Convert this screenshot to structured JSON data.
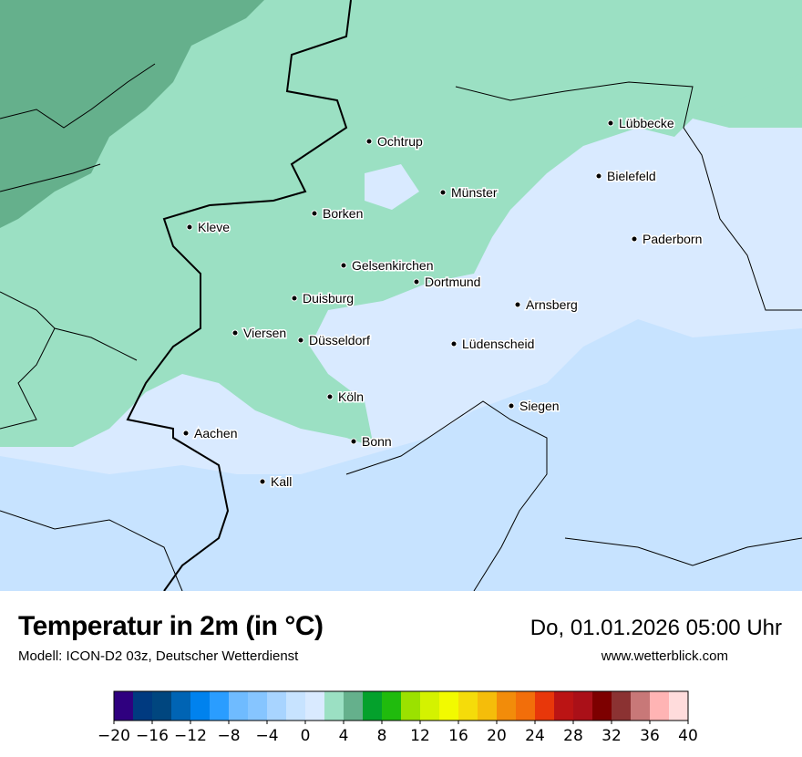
{
  "title": "Temperatur in 2m (in °C)",
  "subtitle": "Modell: ICON-D2 03z, Deutscher Wetterdienst",
  "datetime": "Do, 01.01.2026 05:00 Uhr",
  "website": "www.wetterblick.com",
  "cities": [
    {
      "name": "Ochtrup"
    },
    {
      "name": "Münster"
    },
    {
      "name": "Lübbecke"
    },
    {
      "name": "Bielefeld"
    },
    {
      "name": "Borken"
    },
    {
      "name": "Kleve"
    },
    {
      "name": "Paderborn"
    },
    {
      "name": "Gelsenkirchen"
    },
    {
      "name": "Dortmund"
    },
    {
      "name": "Duisburg"
    },
    {
      "name": "Arnsberg"
    },
    {
      "name": "Viersen"
    },
    {
      "name": "Düsseldorf"
    },
    {
      "name": "Lüdenscheid"
    },
    {
      "name": "Köln"
    },
    {
      "name": "Siegen"
    },
    {
      "name": "Aachen"
    },
    {
      "name": "Bonn"
    },
    {
      "name": "Kall"
    }
  ],
  "legend": {
    "min": -20,
    "max": 40,
    "step": 2,
    "tick_labels": [
      "−20",
      "−16",
      "−12",
      "−8",
      "−4",
      "0",
      "4",
      "8",
      "12",
      "16",
      "20",
      "24",
      "28",
      "32",
      "36",
      "40"
    ],
    "colors": [
      "#2f007f",
      "#003a80",
      "#00467f",
      "#0064b4",
      "#0082ee",
      "#2a9dff",
      "#6fbbff",
      "#86c5ff",
      "#a8d4ff",
      "#c7e3ff",
      "#d9eaff",
      "#9be0c3",
      "#65b08c",
      "#04a12c",
      "#20bb0d",
      "#9be100",
      "#d4f200",
      "#f2fa00",
      "#f5dc0a",
      "#f5bd0a",
      "#f28c0a",
      "#f26e0a",
      "#e8370a",
      "#bb1414",
      "#aa1018",
      "#7d0000",
      "#8b3232",
      "#c87878",
      "#ffb4b4",
      "#ffdcdc"
    ]
  }
}
